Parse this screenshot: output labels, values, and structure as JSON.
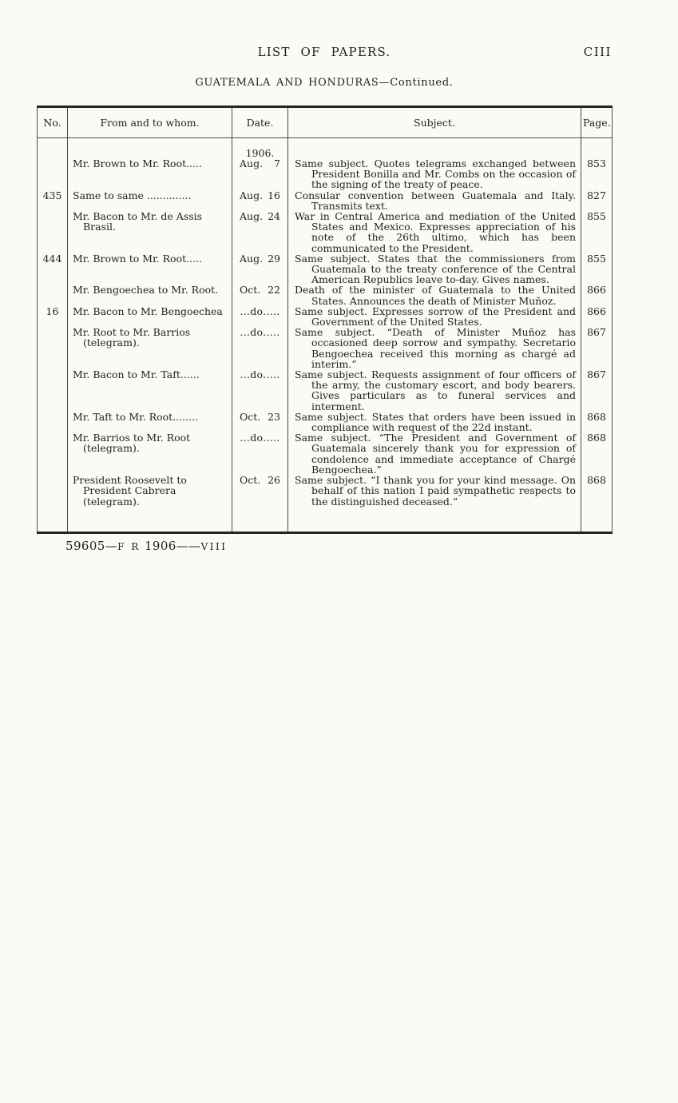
{
  "page": {
    "running_title": "LIST OF PAPERS.",
    "folio": "CIII",
    "section_heading": "GUATEMALA AND HONDURAS—Continued.",
    "footer": {
      "number": "59605—",
      "press_mark": "F R",
      "year": " 1906——",
      "volume": "VIII"
    }
  },
  "table": {
    "columns": [
      "No.",
      "From and to whom.",
      "Date.",
      "Subject.",
      "Page."
    ],
    "rows": [
      {
        "no": "",
        "from": "Mr. Brown to Mr. Root.....",
        "year": "1906.",
        "date": "Aug. 7",
        "subject": "Same subject. Quotes telegrams exchanged between President Bonilla and Mr. Combs on the occasion of the signing of the treaty of peace.",
        "page": "853"
      },
      {
        "no": "435",
        "from": "Same to same ..............",
        "date": "Aug. 16",
        "subject": "Consular convention between Guatemala and Italy. Transmits text.",
        "page": "827"
      },
      {
        "no": "",
        "from": "Mr. Bacon to Mr. de Assis Brasil.",
        "date": "Aug. 24",
        "subject": "War in Central America and mediation of the United States and Mexico. Expresses appreciation of his note of the 26th ultimo, which has been communicated to the President.",
        "page": "855"
      },
      {
        "no": "444",
        "from": "Mr. Brown to Mr. Root.....",
        "date": "Aug. 29",
        "subject": "Same subject. States that the commissioners from Guatemala to the treaty conference of the Central American Republics leave to-day. Gives names.",
        "page": "855"
      },
      {
        "no": "",
        "from": "Mr. Bengoechea to Mr. Root.",
        "date": "Oct. 22",
        "subject": "Death of the minister of Guatemala to the United States. Announces the death of Minister Muñoz.",
        "page": "866"
      },
      {
        "no": "16",
        "from": "Mr. Bacon to Mr. Bengoechea",
        "date": "...do.....",
        "subject": "Same subject. Expresses sorrow of the President and Government of the United States.",
        "page": "866"
      },
      {
        "no": "",
        "from": "Mr. Root to Mr. Barrios (telegram).",
        "date": "...do.....",
        "subject": "Same subject. “Death of Minister Muñoz has occasioned deep sorrow and sympathy. Secretario Bengoechea received this morning as chargé ad interim.”",
        "page": "867"
      },
      {
        "no": "",
        "from": "Mr. Bacon to Mr. Taft......",
        "date": "...do.....",
        "subject": "Same subject. Requests assignment of four officers of the army, the customary escort, and body bearers. Gives particulars as to funeral services and interment.",
        "page": "867"
      },
      {
        "no": "",
        "from": "Mr. Taft to Mr. Root........",
        "date": "Oct. 23",
        "subject": "Same subject. States that orders have been issued in compliance with request of the 22d instant.",
        "page": "868"
      },
      {
        "no": "",
        "from": "Mr. Barrios to Mr. Root (telegram).",
        "date": "...do.....",
        "subject": "Same subject. “The President and Government of Guatemala sincerely thank you for expression of condolence and immediate acceptance of Chargé Bengoechea.”",
        "page": "868"
      },
      {
        "no": "",
        "from": "President Roosevelt to President Cabrera (telegram).",
        "date": "Oct. 26",
        "subject": "Same subject. “I thank you for your kind message. On behalf of this nation I paid sympathetic respects to the distinguished deceased.”",
        "page": "868"
      }
    ]
  },
  "colors": {
    "paper": "#fbfaf6",
    "ink": "#1f1f1f",
    "rule": "#4a4a4a"
  }
}
